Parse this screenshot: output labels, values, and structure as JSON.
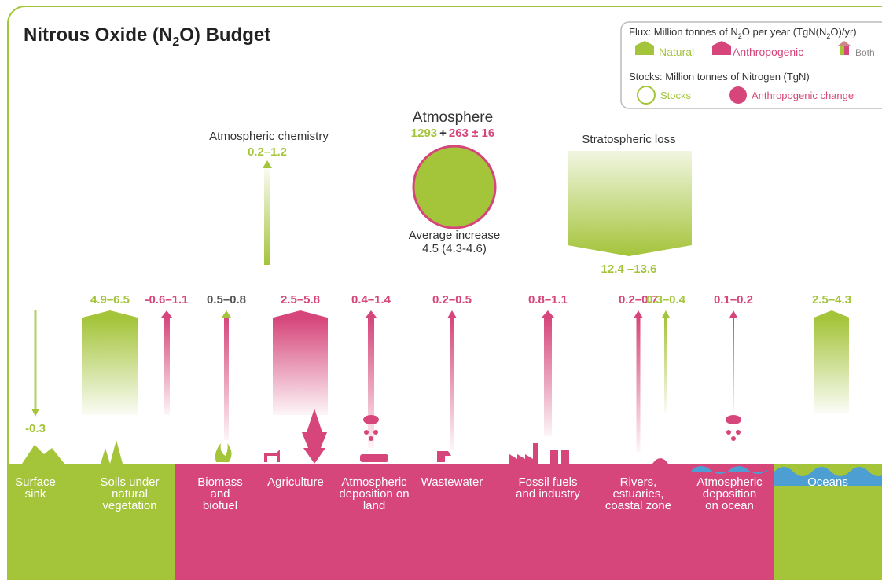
{
  "title": [
    "Nitrous Oxide (N",
    "2",
    "O) Budget"
  ],
  "legend": {
    "flux_label": [
      "Flux: Million tonnes of N",
      "2",
      "O per year (TgN(N",
      "2",
      "O)/yr)"
    ],
    "natural": "Natural",
    "anthropogenic": "Anthropogenic",
    "both": "Both",
    "stocks_label": "Stocks: Million tonnes of Nitrogen (TgN)",
    "stocks": "Stocks",
    "anthropogenic_change": "Anthropogenic change"
  },
  "atmosphere": {
    "title": "Atmosphere",
    "natural": "1293",
    "plus": "+",
    "anthropogenic": "263 ± 16",
    "increase_label": "Average increase",
    "increase": "4.5 (4.3-4.6)"
  },
  "chemistry": {
    "label": "Atmospheric chemistry",
    "value": "0.2–1.2"
  },
  "stratosphere": {
    "label": "Stratospheric loss",
    "value": "12.4 –13.6"
  },
  "fluxes": [
    {
      "value": "-0.3",
      "color": "#a4c43a"
    },
    {
      "value": "4.9–6.5",
      "color": "#a4c43a"
    },
    {
      "value": "-0.6–1.1",
      "color": "#d6467a"
    },
    {
      "value": "0.5–0.8",
      "color": "#555555"
    },
    {
      "value": "2.5–5.8",
      "color": "#d6467a"
    },
    {
      "value": "0.4–1.4",
      "color": "#d6467a"
    },
    {
      "value": "0.2–0.5",
      "color": "#d6467a"
    },
    {
      "value": "0.8–1.1",
      "color": "#d6467a"
    },
    {
      "value": "0.2–0.7",
      "color": "#d6467a"
    },
    {
      "value": "0.3–0.4",
      "color": "#a4c43a"
    },
    {
      "value": "0.1–0.2",
      "color": "#d6467a"
    },
    {
      "value": "2.5–4.3",
      "color": "#a4c43a"
    }
  ],
  "ground": [
    {
      "lines": [
        "Surface",
        "sink"
      ]
    },
    {
      "lines": [
        "Soils under",
        "natural",
        "vegetation"
      ]
    },
    {
      "lines": [
        "Biomass",
        "and",
        "biofuel"
      ]
    },
    {
      "lines": [
        "Agriculture"
      ]
    },
    {
      "lines": [
        "Atmospheric",
        "deposition on",
        "land"
      ]
    },
    {
      "lines": [
        "Wastewater"
      ]
    },
    {
      "lines": [
        "Fossil fuels",
        "and industry"
      ]
    },
    {
      "lines": [
        "Rivers,",
        "estuaries,",
        "coastal zone"
      ]
    },
    {
      "lines": [
        "Atmospheric",
        "deposition",
        "on ocean"
      ]
    },
    {
      "lines": [
        "Oceans"
      ]
    }
  ]
}
